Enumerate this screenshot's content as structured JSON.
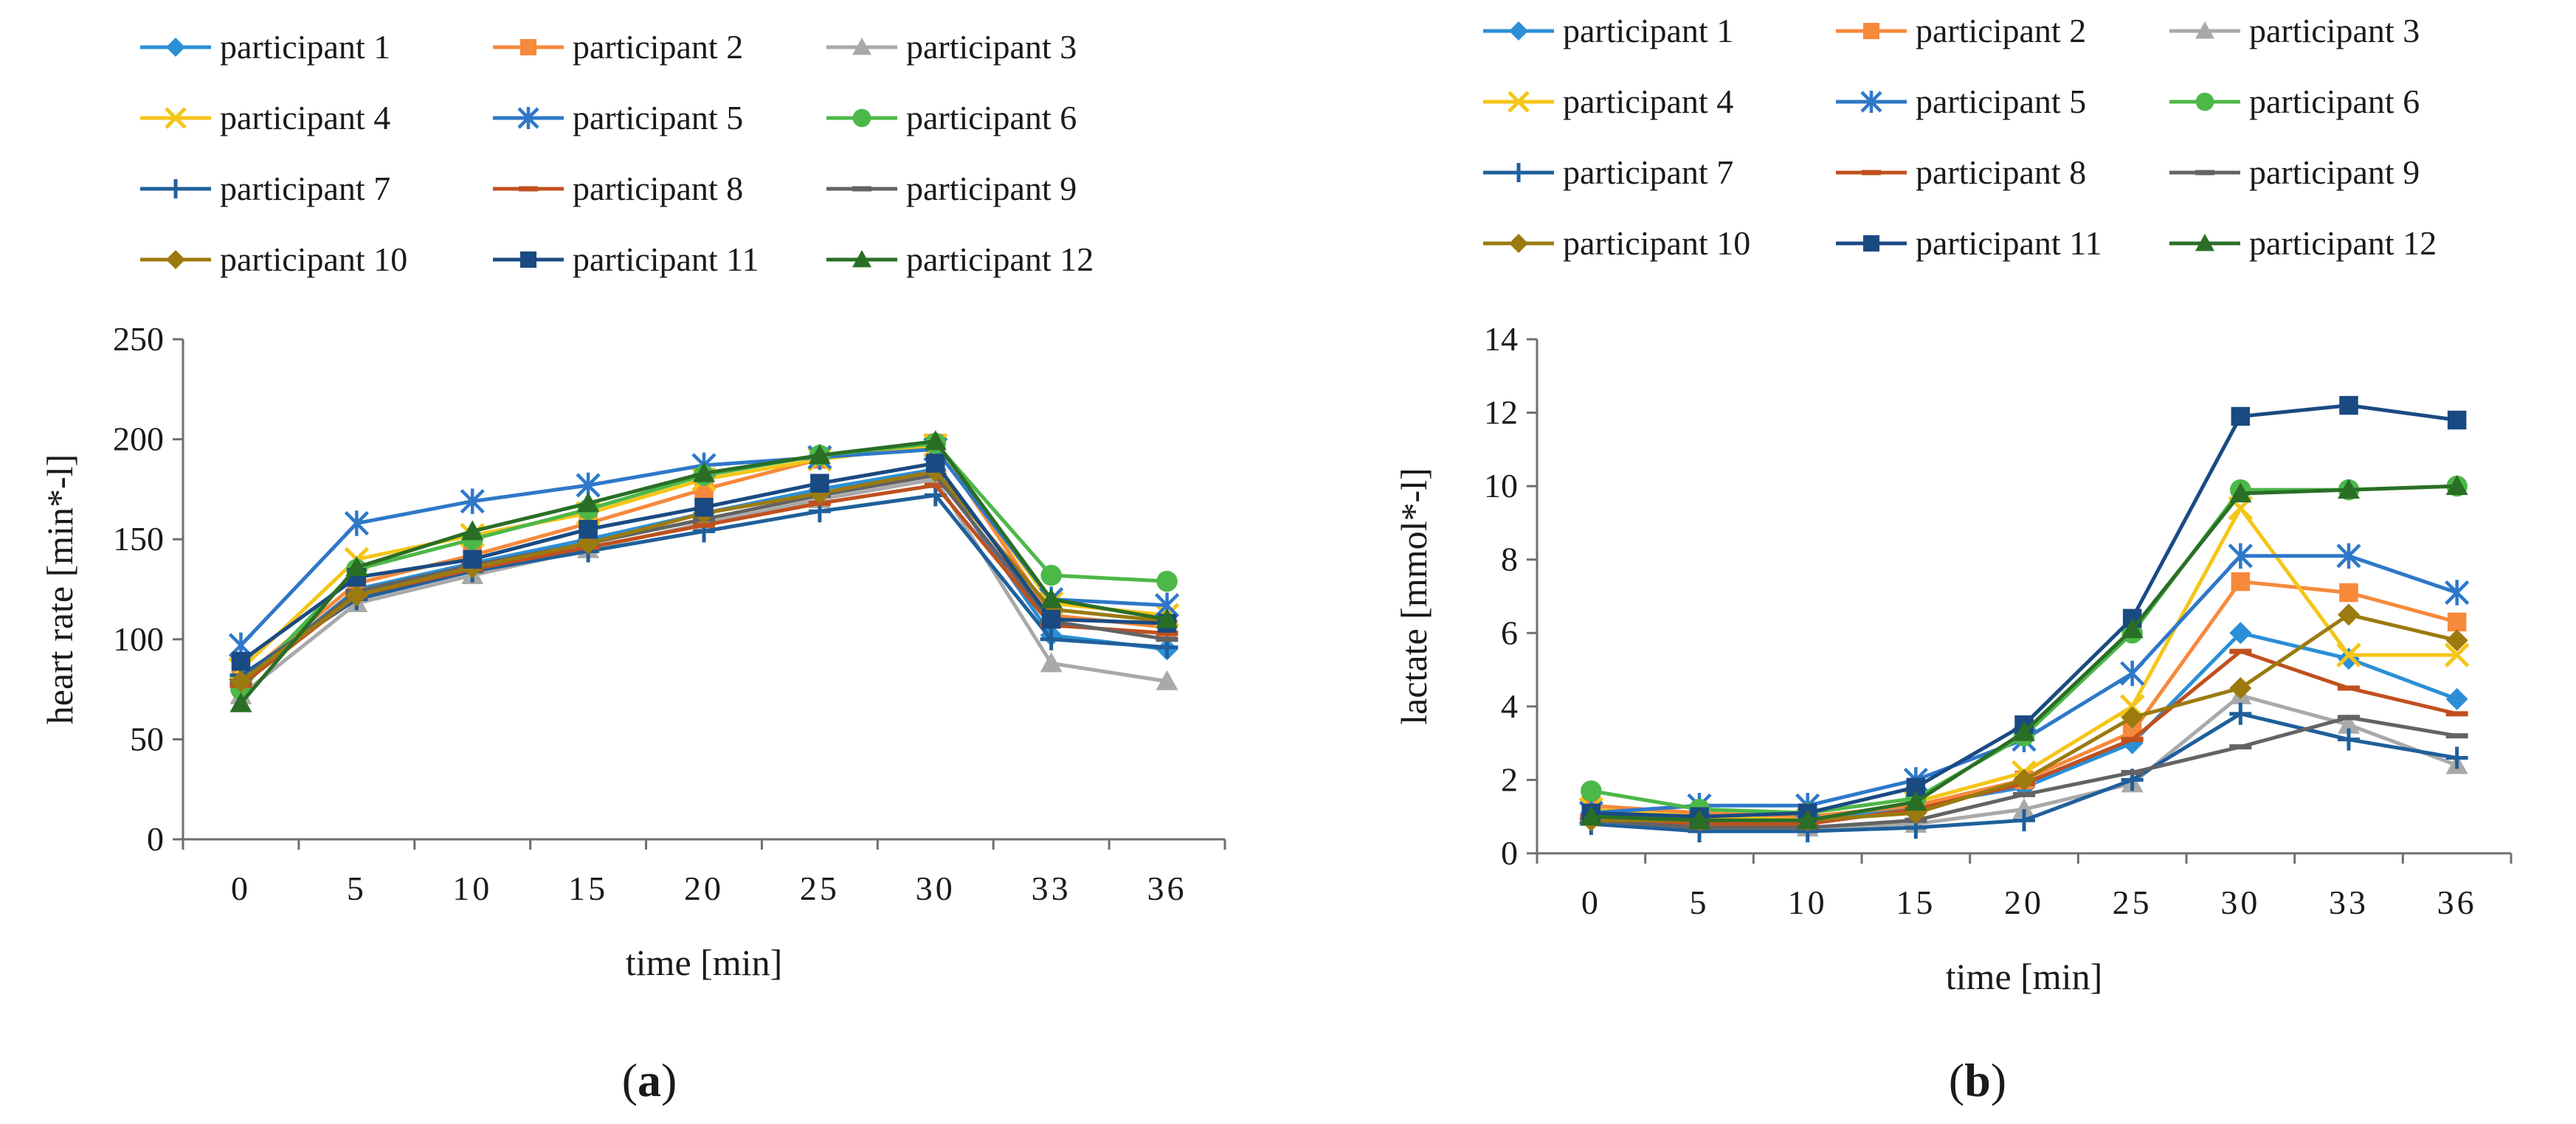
{
  "figure": {
    "panel_a_label": "a",
    "panel_b_label": "b"
  },
  "legend": [
    {
      "name": "participant 1",
      "color": "#2b8fd6",
      "marker": "diamond"
    },
    {
      "name": "participant 2",
      "color": "#f7893b",
      "marker": "square"
    },
    {
      "name": "participant 3",
      "color": "#a9a9a9",
      "marker": "triangle"
    },
    {
      "name": "participant 4",
      "color": "#f5c518",
      "marker": "x"
    },
    {
      "name": "participant 5",
      "color": "#2e78c9",
      "marker": "asterisk"
    },
    {
      "name": "participant 6",
      "color": "#4cb848",
      "marker": "circle"
    },
    {
      "name": "participant 7",
      "color": "#1f5f9b",
      "marker": "plus"
    },
    {
      "name": "participant 8",
      "color": "#c0501e",
      "marker": "dash"
    },
    {
      "name": "participant 9",
      "color": "#636363",
      "marker": "dash"
    },
    {
      "name": "participant 10",
      "color": "#9b7a10",
      "marker": "diamond"
    },
    {
      "name": "participant 11",
      "color": "#1a4a82",
      "marker": "square"
    },
    {
      "name": "participant 12",
      "color": "#2a6e26",
      "marker": "triangle"
    }
  ],
  "chart_data": [
    {
      "type": "line",
      "title": "",
      "xlabel": "time [min]",
      "ylabel": "heart rate [min*-l]",
      "categories": [
        "0",
        "5",
        "10",
        "15",
        "20",
        "25",
        "30",
        "33",
        "36"
      ],
      "yticks": [
        "0",
        "50",
        "100",
        "150",
        "200",
        "250"
      ],
      "ylim": [
        0,
        250
      ],
      "series": [
        {
          "name": "participant 1",
          "values": [
            78,
            125,
            138,
            150,
            163,
            175,
            185,
            102,
            95
          ]
        },
        {
          "name": "participant 2",
          "values": [
            80,
            128,
            142,
            158,
            175,
            190,
            198,
            112,
            106
          ]
        },
        {
          "name": "participant 3",
          "values": [
            72,
            118,
            132,
            145,
            158,
            170,
            180,
            88,
            79
          ]
        },
        {
          "name": "participant 4",
          "values": [
            85,
            140,
            152,
            163,
            180,
            190,
            197,
            118,
            112
          ]
        },
        {
          "name": "participant 5",
          "values": [
            97,
            158,
            169,
            177,
            187,
            191,
            195,
            120,
            117
          ]
        },
        {
          "name": "participant 6",
          "values": [
            75,
            135,
            150,
            165,
            182,
            192,
            198,
            132,
            129
          ]
        },
        {
          "name": "participant 7",
          "values": [
            82,
            120,
            134,
            144,
            154,
            164,
            172,
            100,
            96
          ]
        },
        {
          "name": "participant 8",
          "values": [
            77,
            122,
            135,
            146,
            157,
            168,
            177,
            107,
            103
          ]
        },
        {
          "name": "participant 9",
          "values": [
            79,
            124,
            137,
            148,
            160,
            172,
            182,
            109,
            100
          ]
        },
        {
          "name": "participant 10",
          "values": [
            79,
            122,
            136,
            148,
            163,
            173,
            184,
            115,
            109
          ]
        },
        {
          "name": "participant 11",
          "values": [
            89,
            131,
            140,
            155,
            166,
            178,
            188,
            110,
            108
          ]
        },
        {
          "name": "participant 12",
          "values": [
            68,
            136,
            154,
            168,
            183,
            192,
            199,
            120,
            110
          ]
        }
      ]
    },
    {
      "type": "line",
      "title": "",
      "xlabel": "time [min]",
      "ylabel": "lactate [mmol*-l]",
      "categories": [
        "0",
        "5",
        "10",
        "15",
        "20",
        "25",
        "30",
        "33",
        "36"
      ],
      "yticks": [
        "0",
        "2",
        "4",
        "6",
        "8",
        "10",
        "12",
        "14"
      ],
      "ylim": [
        0,
        14
      ],
      "series": [
        {
          "name": "participant 1",
          "values": [
            1.1,
            0.9,
            0.9,
            1.3,
            1.8,
            3.0,
            6.0,
            5.3,
            4.2
          ]
        },
        {
          "name": "participant 2",
          "values": [
            1.3,
            1.1,
            1.0,
            1.3,
            2.0,
            3.3,
            7.4,
            7.1,
            6.3
          ]
        },
        {
          "name": "participant 3",
          "values": [
            1.0,
            0.8,
            0.7,
            0.8,
            1.2,
            1.9,
            4.3,
            3.5,
            2.4
          ]
        },
        {
          "name": "participant 4",
          "values": [
            1.2,
            1.0,
            0.9,
            1.4,
            2.2,
            4.0,
            9.4,
            5.4,
            5.4
          ]
        },
        {
          "name": "participant 5",
          "values": [
            1.1,
            1.3,
            1.3,
            2.0,
            3.1,
            4.9,
            8.1,
            8.1,
            7.1
          ]
        },
        {
          "name": "participant 6",
          "values": [
            1.7,
            1.2,
            1.1,
            1.5,
            3.2,
            6.0,
            9.9,
            9.9,
            10.0
          ]
        },
        {
          "name": "participant 7",
          "values": [
            0.8,
            0.6,
            0.6,
            0.7,
            0.9,
            2.0,
            3.8,
            3.1,
            2.6
          ]
        },
        {
          "name": "participant 8",
          "values": [
            1.0,
            0.8,
            0.8,
            1.2,
            1.9,
            3.1,
            5.5,
            4.5,
            3.8
          ]
        },
        {
          "name": "participant 9",
          "values": [
            0.9,
            0.7,
            0.7,
            0.9,
            1.6,
            2.2,
            2.9,
            3.7,
            3.2
          ]
        },
        {
          "name": "participant 10",
          "values": [
            0.9,
            0.9,
            0.9,
            1.1,
            2.0,
            3.7,
            4.5,
            6.5,
            5.8
          ]
        },
        {
          "name": "participant 11",
          "values": [
            1.1,
            1.0,
            1.1,
            1.8,
            3.5,
            6.4,
            11.9,
            12.2,
            11.8
          ]
        },
        {
          "name": "participant 12",
          "values": [
            1.0,
            0.9,
            0.9,
            1.4,
            3.3,
            6.1,
            9.8,
            9.9,
            10.0
          ]
        }
      ]
    }
  ]
}
